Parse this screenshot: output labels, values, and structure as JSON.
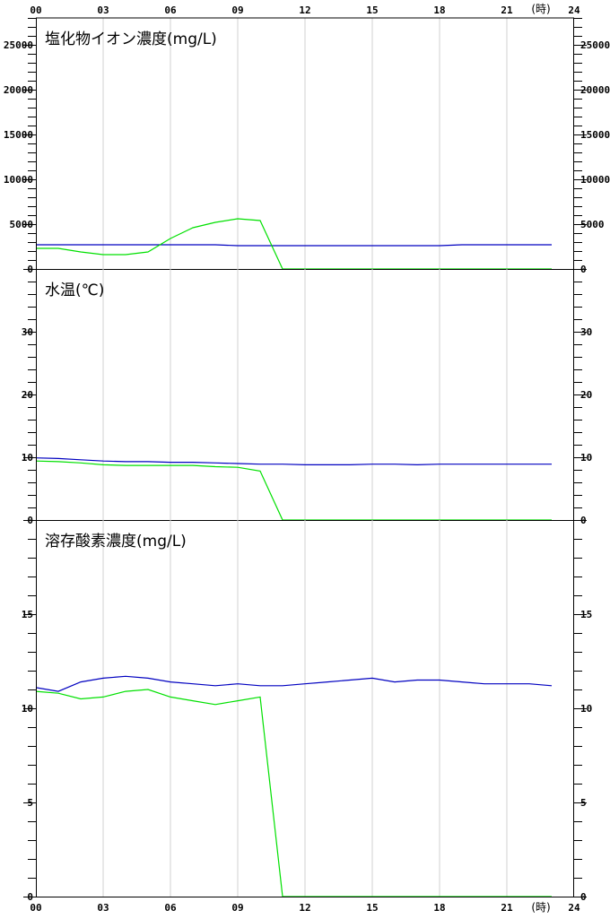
{
  "hours_unit": "(時)",
  "x_ticks": [
    "00",
    "03",
    "06",
    "09",
    "12",
    "15",
    "18",
    "21",
    "24"
  ],
  "colors": {
    "series_a": "#0000c0",
    "series_b": "#00e000",
    "grid": "#d0d0d0",
    "axis": "#000000"
  },
  "chart_data": [
    {
      "type": "line",
      "title": "塩化物イオン濃度(mg/L)",
      "xlim": [
        0,
        24
      ],
      "ylim": [
        0,
        28000
      ],
      "y_ticks": [
        0,
        5000,
        10000,
        15000,
        20000,
        25000
      ],
      "grid": "vertical",
      "series": [
        {
          "color": "#0000c0",
          "x": [
            0,
            1,
            2,
            3,
            4,
            5,
            6,
            7,
            8,
            9,
            10,
            11,
            12,
            13,
            14,
            15,
            16,
            17,
            18,
            19,
            20,
            21,
            22,
            23
          ],
          "values": [
            2700,
            2700,
            2700,
            2700,
            2700,
            2700,
            2700,
            2700,
            2700,
            2600,
            2600,
            2600,
            2600,
            2600,
            2600,
            2600,
            2600,
            2600,
            2600,
            2700,
            2700,
            2700,
            2700,
            2700
          ]
        },
        {
          "color": "#00e000",
          "x": [
            0,
            1,
            2,
            3,
            4,
            5,
            6,
            7,
            8,
            9,
            10,
            11,
            12,
            13,
            14,
            15,
            16,
            17,
            18,
            19,
            20,
            21,
            22,
            23
          ],
          "values": [
            2300,
            2300,
            1900,
            1600,
            1600,
            1900,
            3400,
            4600,
            5200,
            5600,
            5400,
            0,
            0,
            0,
            0,
            0,
            0,
            0,
            0,
            0,
            0,
            0,
            0,
            0
          ]
        }
      ]
    },
    {
      "type": "line",
      "title": "水温(℃)",
      "xlim": [
        0,
        24
      ],
      "ylim": [
        0,
        40
      ],
      "y_ticks": [
        0,
        10,
        20,
        30
      ],
      "grid": "vertical",
      "series": [
        {
          "color": "#0000c0",
          "x": [
            0,
            1,
            2,
            3,
            4,
            5,
            6,
            7,
            8,
            9,
            10,
            11,
            12,
            13,
            14,
            15,
            16,
            17,
            18,
            19,
            20,
            21,
            22,
            23
          ],
          "values": [
            9.9,
            9.8,
            9.6,
            9.4,
            9.3,
            9.3,
            9.2,
            9.2,
            9.1,
            9.0,
            8.9,
            8.9,
            8.8,
            8.8,
            8.8,
            8.9,
            8.9,
            8.8,
            8.9,
            8.9,
            8.9,
            8.9,
            8.9,
            8.9
          ]
        },
        {
          "color": "#00e000",
          "x": [
            0,
            1,
            2,
            3,
            4,
            5,
            6,
            7,
            8,
            9,
            10,
            11,
            12,
            13,
            14,
            15,
            16,
            17,
            18,
            19,
            20,
            21,
            22,
            23
          ],
          "values": [
            9.4,
            9.3,
            9.1,
            8.8,
            8.7,
            8.7,
            8.7,
            8.7,
            8.5,
            8.4,
            7.8,
            0,
            0,
            0,
            0,
            0,
            0,
            0,
            0,
            0,
            0,
            0,
            0,
            0
          ]
        }
      ]
    },
    {
      "type": "line",
      "title": "溶存酸素濃度(mg/L)",
      "xlim": [
        0,
        24
      ],
      "ylim": [
        0,
        20
      ],
      "y_ticks": [
        0,
        5,
        10,
        15
      ],
      "grid": "vertical",
      "series": [
        {
          "color": "#0000c0",
          "x": [
            0,
            1,
            2,
            3,
            4,
            5,
            6,
            7,
            8,
            9,
            10,
            11,
            12,
            13,
            14,
            15,
            16,
            17,
            18,
            19,
            20,
            21,
            22,
            23
          ],
          "values": [
            11.1,
            10.9,
            11.4,
            11.6,
            11.7,
            11.6,
            11.4,
            11.3,
            11.2,
            11.3,
            11.2,
            11.2,
            11.3,
            11.4,
            11.5,
            11.6,
            11.4,
            11.5,
            11.5,
            11.4,
            11.3,
            11.3,
            11.3,
            11.2
          ]
        },
        {
          "color": "#00e000",
          "x": [
            0,
            1,
            2,
            3,
            4,
            5,
            6,
            7,
            8,
            9,
            10,
            11,
            12,
            13,
            14,
            15,
            16,
            17,
            18,
            19,
            20,
            21,
            22,
            23
          ],
          "values": [
            10.9,
            10.8,
            10.5,
            10.6,
            10.9,
            11.0,
            10.6,
            10.4,
            10.2,
            10.4,
            10.6,
            0,
            0,
            0,
            0,
            0,
            0,
            0,
            0,
            0,
            0,
            0,
            0,
            0
          ]
        }
      ]
    }
  ]
}
